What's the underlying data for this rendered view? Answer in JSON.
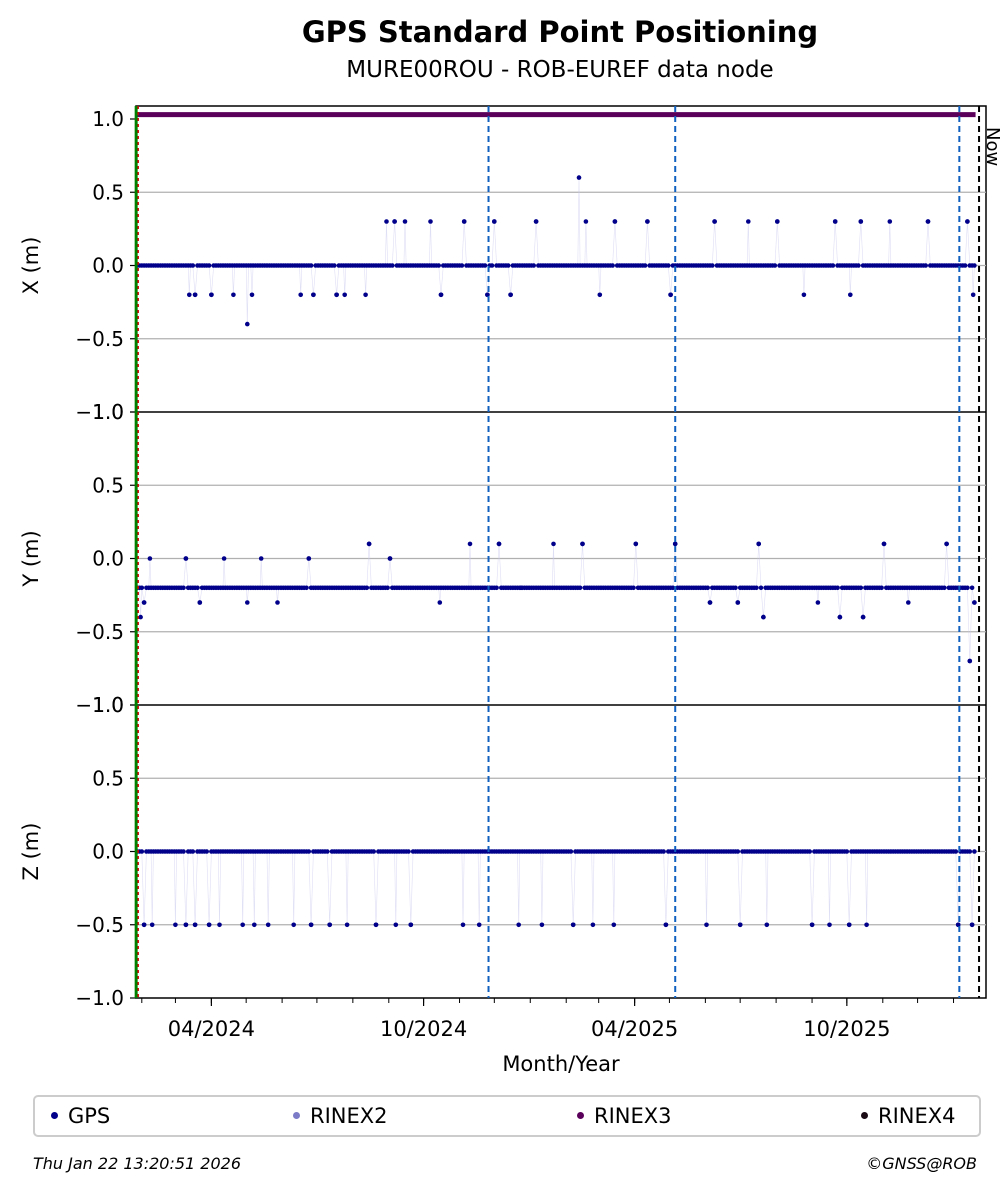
{
  "title": "GPS Standard Point Positioning",
  "subtitle": "MURE00ROU - ROB-EUREF data node",
  "timestamp": "Thu Jan 22 13:20:51 2026",
  "copyright": "©GNSS@ROB",
  "legend": [
    {
      "label": "GPS",
      "color": "#00008b"
    },
    {
      "label": "RINEX2",
      "color": "#7b7bc8"
    },
    {
      "label": "RINEX3",
      "color": "#5a005a"
    },
    {
      "label": "RINEX4",
      "color": "#1a0a14"
    }
  ],
  "chart_data": {
    "type": "scatter",
    "xlabel": "Month/Year",
    "x_range": [
      "2024-01-27",
      "2026-01-29"
    ],
    "x_ticks": [
      "04/2024",
      "10/2024",
      "04/2025",
      "10/2025"
    ],
    "now_label": "Now",
    "now_date": "2026-01-23",
    "events": {
      "vertical_lines": [
        "2024-11-26",
        "2025-05-06",
        "2026-01-06"
      ],
      "start_markers": [
        "2024-01-28"
      ]
    },
    "panels": [
      {
        "name": "X",
        "ylabel": "X (m)",
        "ylim": [
          -1.0,
          1.0
        ],
        "yticks": [
          1.0,
          0.5,
          0.0,
          -0.5,
          -1.0
        ],
        "baseline": 0.0,
        "outliers": [
          {
            "date": "2024-03-13",
            "value": -0.2
          },
          {
            "date": "2024-03-18",
            "value": -0.2
          },
          {
            "date": "2024-04-01",
            "value": -0.2
          },
          {
            "date": "2024-04-20",
            "value": -0.2
          },
          {
            "date": "2024-05-02",
            "value": -0.4
          },
          {
            "date": "2024-05-06",
            "value": -0.2
          },
          {
            "date": "2024-06-17",
            "value": -0.2
          },
          {
            "date": "2024-06-28",
            "value": -0.2
          },
          {
            "date": "2024-07-18",
            "value": -0.2
          },
          {
            "date": "2024-07-25",
            "value": -0.2
          },
          {
            "date": "2024-08-12",
            "value": -0.2
          },
          {
            "date": "2024-08-30",
            "value": 0.3
          },
          {
            "date": "2024-09-06",
            "value": 0.3
          },
          {
            "date": "2024-09-15",
            "value": 0.3
          },
          {
            "date": "2024-10-07",
            "value": 0.3
          },
          {
            "date": "2024-10-16",
            "value": -0.2
          },
          {
            "date": "2024-11-05",
            "value": 0.3
          },
          {
            "date": "2024-11-25",
            "value": -0.2
          },
          {
            "date": "2024-12-01",
            "value": 0.3
          },
          {
            "date": "2024-12-15",
            "value": -0.2
          },
          {
            "date": "2025-01-06",
            "value": 0.3
          },
          {
            "date": "2025-02-12",
            "value": 0.6
          },
          {
            "date": "2025-02-18",
            "value": 0.3
          },
          {
            "date": "2025-03-02",
            "value": -0.2
          },
          {
            "date": "2025-03-15",
            "value": 0.3
          },
          {
            "date": "2025-04-12",
            "value": 0.3
          },
          {
            "date": "2025-05-02",
            "value": -0.2
          },
          {
            "date": "2025-06-09",
            "value": 0.3
          },
          {
            "date": "2025-07-08",
            "value": 0.3
          },
          {
            "date": "2025-08-02",
            "value": 0.3
          },
          {
            "date": "2025-08-25",
            "value": -0.2
          },
          {
            "date": "2025-09-21",
            "value": 0.3
          },
          {
            "date": "2025-10-04",
            "value": -0.2
          },
          {
            "date": "2025-10-13",
            "value": 0.3
          },
          {
            "date": "2025-11-07",
            "value": 0.3
          },
          {
            "date": "2025-12-10",
            "value": 0.3
          },
          {
            "date": "2026-01-13",
            "value": 0.3
          },
          {
            "date": "2026-01-18",
            "value": -0.2
          }
        ]
      },
      {
        "name": "Y",
        "ylabel": "Y (m)",
        "ylim": [
          -1.0,
          1.0
        ],
        "yticks": [
          1.0,
          0.5,
          0.0,
          -0.5,
          -1.0
        ],
        "baseline": -0.2,
        "outliers": [
          {
            "date": "2024-01-31",
            "value": -0.4
          },
          {
            "date": "2024-02-03",
            "value": -0.3
          },
          {
            "date": "2024-02-08",
            "value": 0.0
          },
          {
            "date": "2024-03-10",
            "value": 0.0
          },
          {
            "date": "2024-03-22",
            "value": -0.3
          },
          {
            "date": "2024-04-12",
            "value": 0.0
          },
          {
            "date": "2024-05-02",
            "value": -0.3
          },
          {
            "date": "2024-05-14",
            "value": 0.0
          },
          {
            "date": "2024-05-28",
            "value": -0.3
          },
          {
            "date": "2024-06-24",
            "value": 0.0
          },
          {
            "date": "2024-08-15",
            "value": 0.1
          },
          {
            "date": "2024-09-02",
            "value": 0.0
          },
          {
            "date": "2024-10-15",
            "value": -0.3
          },
          {
            "date": "2024-11-10",
            "value": 0.1
          },
          {
            "date": "2024-12-05",
            "value": 0.1
          },
          {
            "date": "2024-12-24",
            "value": -0.2
          },
          {
            "date": "2025-01-21",
            "value": 0.1
          },
          {
            "date": "2025-02-15",
            "value": 0.1
          },
          {
            "date": "2025-04-02",
            "value": 0.1
          },
          {
            "date": "2025-05-06",
            "value": 0.1
          },
          {
            "date": "2025-06-05",
            "value": -0.3
          },
          {
            "date": "2025-06-29",
            "value": -0.3
          },
          {
            "date": "2025-07-17",
            "value": 0.1
          },
          {
            "date": "2025-07-21",
            "value": -0.4
          },
          {
            "date": "2025-09-06",
            "value": -0.3
          },
          {
            "date": "2025-09-25",
            "value": -0.4
          },
          {
            "date": "2025-10-15",
            "value": -0.4
          },
          {
            "date": "2025-11-02",
            "value": 0.1
          },
          {
            "date": "2025-11-23",
            "value": -0.3
          },
          {
            "date": "2025-12-26",
            "value": 0.1
          },
          {
            "date": "2026-01-15",
            "value": -0.7
          },
          {
            "date": "2026-01-19",
            "value": -0.3
          }
        ]
      },
      {
        "name": "Z",
        "ylabel": "Z (m)",
        "ylim": [
          -1.0,
          1.0
        ],
        "yticks": [
          1.0,
          0.5,
          0.0,
          -0.5,
          -1.0
        ],
        "baseline": 0.0,
        "outliers": [
          {
            "date": "2024-02-03",
            "value": -0.5
          },
          {
            "date": "2024-02-10",
            "value": -0.5
          },
          {
            "date": "2024-03-01",
            "value": -0.5
          },
          {
            "date": "2024-03-10",
            "value": -0.5
          },
          {
            "date": "2024-03-18",
            "value": -0.5
          },
          {
            "date": "2024-03-30",
            "value": -0.5
          },
          {
            "date": "2024-04-08",
            "value": -0.5
          },
          {
            "date": "2024-04-28",
            "value": -0.5
          },
          {
            "date": "2024-05-08",
            "value": -0.5
          },
          {
            "date": "2024-05-20",
            "value": -0.5
          },
          {
            "date": "2024-06-11",
            "value": -0.5
          },
          {
            "date": "2024-06-26",
            "value": -0.5
          },
          {
            "date": "2024-07-12",
            "value": -0.5
          },
          {
            "date": "2024-07-27",
            "value": -0.5
          },
          {
            "date": "2024-08-21",
            "value": -0.5
          },
          {
            "date": "2024-09-07",
            "value": -0.5
          },
          {
            "date": "2024-09-20",
            "value": -0.5
          },
          {
            "date": "2024-11-04",
            "value": -0.5
          },
          {
            "date": "2024-11-18",
            "value": -0.5
          },
          {
            "date": "2024-12-22",
            "value": -0.5
          },
          {
            "date": "2025-01-11",
            "value": -0.5
          },
          {
            "date": "2025-02-07",
            "value": -0.5
          },
          {
            "date": "2025-02-24",
            "value": -0.5
          },
          {
            "date": "2025-03-14",
            "value": -0.5
          },
          {
            "date": "2025-04-28",
            "value": -0.5
          },
          {
            "date": "2025-06-02",
            "value": -0.5
          },
          {
            "date": "2025-07-01",
            "value": -0.5
          },
          {
            "date": "2025-07-24",
            "value": -0.5
          },
          {
            "date": "2025-09-01",
            "value": -0.5
          },
          {
            "date": "2025-09-16",
            "value": -0.5
          },
          {
            "date": "2025-10-03",
            "value": -0.5
          },
          {
            "date": "2025-10-18",
            "value": -0.5
          },
          {
            "date": "2026-01-05",
            "value": -0.5
          },
          {
            "date": "2026-01-17",
            "value": -0.5
          }
        ]
      }
    ],
    "rinex3_row": {
      "value": 1.03,
      "start": "2024-01-28",
      "end": "2026-01-20"
    }
  }
}
